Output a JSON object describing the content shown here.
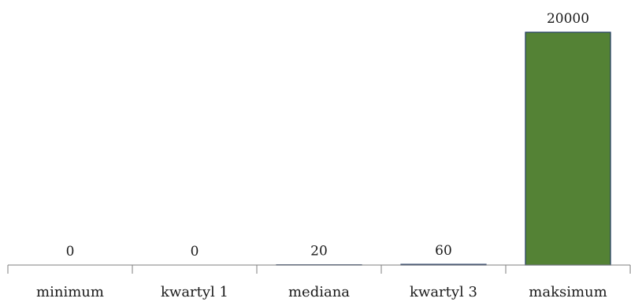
{
  "chart_data": {
    "type": "bar",
    "categories": [
      "minimum",
      "kwartyl 1",
      "mediana",
      "kwartyl 3",
      "maksimum"
    ],
    "values": [
      0,
      0,
      20,
      60,
      20000
    ],
    "data_labels": [
      "0",
      "0",
      "20",
      "60",
      "20000"
    ],
    "title": "",
    "xlabel": "",
    "ylabel": "",
    "ylim": [
      0,
      20000
    ],
    "grid": false,
    "legend": "none",
    "bar_color": "#548235",
    "bar_edge_color": "#1f3864"
  }
}
